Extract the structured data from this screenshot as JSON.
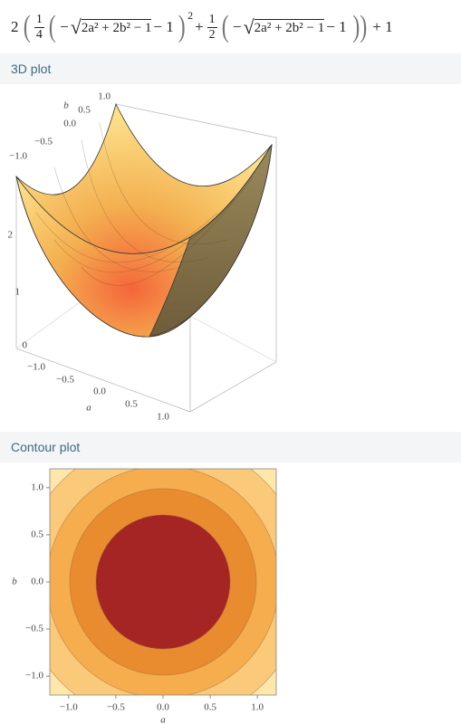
{
  "formula": {
    "tokens": [
      {
        "text": "2"
      },
      {
        "paren": "("
      },
      {
        "num": "1",
        "den": "4"
      },
      {
        "paren": "("
      },
      {
        "text": "−"
      },
      {
        "sqrt": "√",
        "radicand": "2a² + 2b² − 1"
      },
      {
        "text": "− 1"
      },
      {
        "paren": ")"
      },
      {
        "sup": "2"
      },
      {
        "text": "+"
      },
      {
        "num": "1",
        "den": "2"
      },
      {
        "paren": "("
      },
      {
        "text": "−"
      },
      {
        "sqrt": "√",
        "radicand": "2a² + 2b² − 1"
      },
      {
        "text": "− 1"
      },
      {
        "paren": "))"
      },
      {
        "text": "+ 1"
      }
    ]
  },
  "plot3d": {
    "title": "3D plot",
    "b_label": "b",
    "b_ticks": [
      "1.0",
      "0.5",
      "0.0",
      "−0.5",
      "−1.0"
    ],
    "z_ticks": [
      "2",
      "1",
      "0"
    ],
    "a_label": "a",
    "a_ticks": [
      "−1.0",
      "−0.5",
      "0.0",
      "0.5",
      "1.0"
    ]
  },
  "contour": {
    "title": "Contour plot",
    "xlim": [
      -1.2,
      1.2
    ],
    "ylim": [
      -1.2,
      1.2
    ],
    "xticks": [
      {
        "value": -1,
        "label": "−1.0"
      },
      {
        "value": -0.5,
        "label": "−0.5"
      },
      {
        "value": 0,
        "label": "0.0"
      },
      {
        "value": 0.5,
        "label": "0.5"
      },
      {
        "value": 1,
        "label": "1.0"
      }
    ],
    "yticks": [
      {
        "value": -1,
        "label": "−1.0"
      },
      {
        "value": -0.5,
        "label": "−0.5"
      },
      {
        "value": 0,
        "label": "0.0"
      },
      {
        "value": 0.5,
        "label": "0.5"
      },
      {
        "value": 1,
        "label": "1.0"
      }
    ],
    "xlabel": "a",
    "ylabel": "b"
  }
}
